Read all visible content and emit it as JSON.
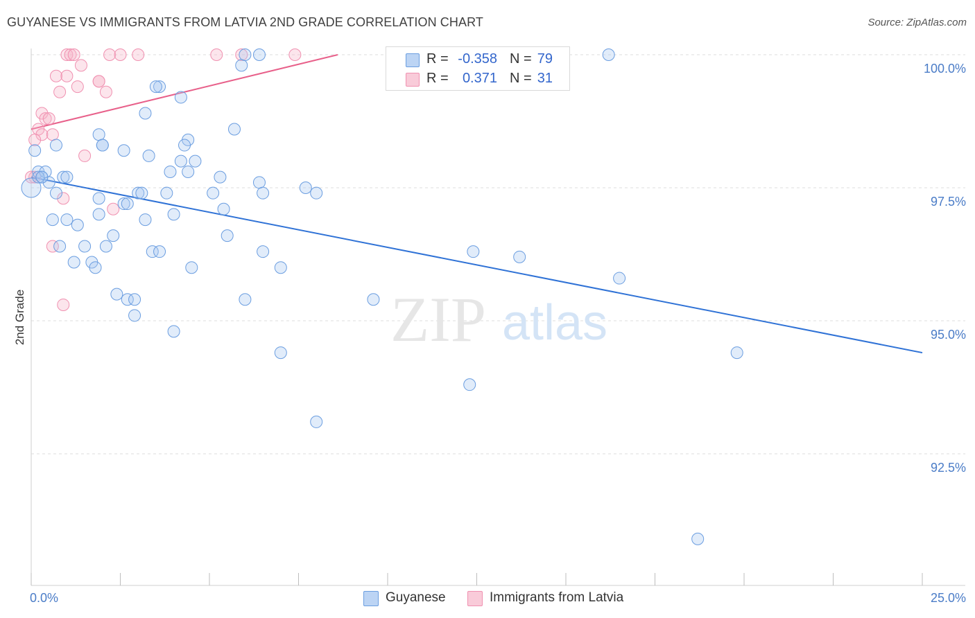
{
  "header": {
    "title": "GUYANESE VS IMMIGRANTS FROM LATVIA 2ND GRADE CORRELATION CHART",
    "source": "Source: ZipAtlas.com"
  },
  "watermark": {
    "zip": "ZIP",
    "atlas": "atlas"
  },
  "legend": {
    "rows": [
      {
        "r_label": "R =",
        "r_value": "-0.358",
        "n_label": "N =",
        "n_value": "79"
      },
      {
        "r_label": "R =",
        "r_value": "0.371",
        "n_label": "N =",
        "n_value": "31"
      }
    ]
  },
  "bottom_legend": {
    "series1": "Guyanese",
    "series2": "Immigrants from Latvia"
  },
  "chart_data": {
    "type": "scatter",
    "title": "GUYANESE VS IMMIGRANTS FROM LATVIA 2ND GRADE CORRELATION CHART",
    "xlabel": "",
    "ylabel": "2nd Grade",
    "xlim": [
      0,
      25
    ],
    "ylim": [
      90.2,
      100.5
    ],
    "x_tick_labels": [
      "0.0%",
      "25.0%"
    ],
    "y_ticks": [
      92.5,
      95.0,
      97.5,
      100.0
    ],
    "y_tick_labels": [
      "92.5%",
      "95.0%",
      "97.5%",
      "100.0%"
    ],
    "colors": {
      "guyanese": "#6a9de0",
      "latvia": "#f090b0",
      "guyanese_line": "#2f72d6",
      "latvia_line": "#e8608a"
    },
    "series": [
      {
        "name": "Guyanese",
        "R": -0.358,
        "N": 79,
        "trend": {
          "x": [
            0,
            25
          ],
          "y": [
            97.7,
            94.4
          ]
        },
        "points": [
          [
            0.0,
            97.5
          ],
          [
            0.1,
            98.2
          ],
          [
            0.2,
            97.8
          ],
          [
            0.3,
            97.7
          ],
          [
            0.4,
            97.8
          ],
          [
            0.2,
            97.7
          ],
          [
            0.5,
            97.6
          ],
          [
            0.7,
            98.3
          ],
          [
            0.9,
            97.7
          ],
          [
            1.0,
            97.7
          ],
          [
            0.7,
            97.4
          ],
          [
            1.9,
            98.5
          ],
          [
            2.0,
            98.3
          ],
          [
            2.6,
            98.2
          ],
          [
            2.0,
            98.3
          ],
          [
            3.6,
            99.4
          ],
          [
            3.5,
            99.4
          ],
          [
            3.2,
            98.9
          ],
          [
            4.2,
            99.2
          ],
          [
            5.9,
            99.8
          ],
          [
            6.4,
            100.0
          ],
          [
            6.0,
            100.0
          ],
          [
            16.2,
            100.0
          ],
          [
            5.7,
            98.6
          ],
          [
            4.4,
            98.4
          ],
          [
            4.3,
            98.3
          ],
          [
            3.3,
            98.1
          ],
          [
            4.6,
            98.0
          ],
          [
            4.2,
            98.0
          ],
          [
            3.9,
            97.8
          ],
          [
            4.4,
            97.8
          ],
          [
            5.3,
            97.7
          ],
          [
            6.4,
            97.6
          ],
          [
            7.7,
            97.5
          ],
          [
            8.0,
            97.4
          ],
          [
            6.5,
            97.4
          ],
          [
            3.0,
            97.4
          ],
          [
            3.1,
            97.4
          ],
          [
            1.9,
            97.3
          ],
          [
            5.1,
            97.4
          ],
          [
            5.4,
            97.1
          ],
          [
            2.6,
            97.2
          ],
          [
            3.8,
            97.4
          ],
          [
            1.9,
            97.0
          ],
          [
            1.0,
            96.9
          ],
          [
            1.3,
            96.8
          ],
          [
            4.0,
            97.0
          ],
          [
            3.2,
            96.9
          ],
          [
            2.3,
            96.6
          ],
          [
            5.5,
            96.6
          ],
          [
            0.8,
            96.4
          ],
          [
            1.5,
            96.4
          ],
          [
            2.1,
            96.4
          ],
          [
            3.4,
            96.3
          ],
          [
            6.5,
            96.3
          ],
          [
            1.2,
            96.1
          ],
          [
            1.7,
            96.1
          ],
          [
            1.8,
            96.0
          ],
          [
            4.5,
            96.0
          ],
          [
            7.0,
            96.0
          ],
          [
            12.4,
            96.3
          ],
          [
            13.7,
            96.2
          ],
          [
            16.5,
            95.8
          ],
          [
            9.6,
            95.4
          ],
          [
            2.4,
            95.5
          ],
          [
            2.7,
            95.4
          ],
          [
            2.9,
            95.4
          ],
          [
            6.0,
            95.4
          ],
          [
            2.9,
            95.1
          ],
          [
            4.0,
            94.8
          ],
          [
            7.0,
            94.4
          ],
          [
            19.8,
            94.4
          ],
          [
            12.3,
            93.8
          ],
          [
            8.0,
            93.1
          ],
          [
            18.7,
            90.9
          ],
          [
            0.3,
            97.7
          ],
          [
            0.6,
            96.9
          ],
          [
            2.7,
            97.2
          ],
          [
            3.6,
            96.3
          ]
        ]
      },
      {
        "name": "Immigrants from Latvia",
        "R": 0.371,
        "N": 31,
        "trend": {
          "x": [
            0,
            8.6
          ],
          "y": [
            98.6,
            100.0
          ]
        },
        "points": [
          [
            1.0,
            100.0
          ],
          [
            1.1,
            100.0
          ],
          [
            1.2,
            100.0
          ],
          [
            2.2,
            100.0
          ],
          [
            2.5,
            100.0
          ],
          [
            3.0,
            100.0
          ],
          [
            5.2,
            100.0
          ],
          [
            5.9,
            100.0
          ],
          [
            7.4,
            100.0
          ],
          [
            1.4,
            99.8
          ],
          [
            0.7,
            99.6
          ],
          [
            1.0,
            99.6
          ],
          [
            1.9,
            99.5
          ],
          [
            1.9,
            99.5
          ],
          [
            1.3,
            99.4
          ],
          [
            0.8,
            99.3
          ],
          [
            2.1,
            99.3
          ],
          [
            0.3,
            98.9
          ],
          [
            0.4,
            98.8
          ],
          [
            0.5,
            98.8
          ],
          [
            0.2,
            98.6
          ],
          [
            0.3,
            98.5
          ],
          [
            0.6,
            98.5
          ],
          [
            0.1,
            98.4
          ],
          [
            1.5,
            98.1
          ],
          [
            0.1,
            97.7
          ],
          [
            0.0,
            97.7
          ],
          [
            0.9,
            97.3
          ],
          [
            2.3,
            97.1
          ],
          [
            0.6,
            96.4
          ],
          [
            0.9,
            95.3
          ]
        ]
      }
    ]
  }
}
